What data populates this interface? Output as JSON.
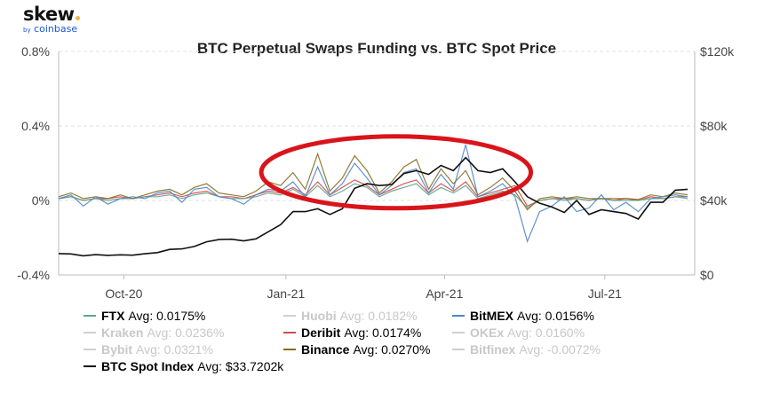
{
  "chart_data": {
    "type": "line",
    "title": "BTC Perpetual Swaps Funding vs. BTC Spot Price",
    "x_ticks": [
      "Oct-20",
      "Jan-21",
      "Apr-21",
      "Jul-21"
    ],
    "x_range": [
      "2020-08-25",
      "2021-08-21"
    ],
    "y_left": {
      "ticks": [
        "-0.4%",
        "0%",
        "0.4%",
        "0.8%"
      ],
      "range": [
        -0.4,
        0.8
      ],
      "unit": "%"
    },
    "y_right": {
      "ticks": [
        "$0",
        "$40k",
        "$80k",
        "$120k"
      ],
      "range": [
        0,
        120
      ],
      "unit": "$k"
    },
    "grid": "dashed horizontal",
    "legend_position": "bottom",
    "x_dates_weekly_start": "2020-08-25",
    "series": [
      {
        "name": "BTC Spot Index",
        "avg": "Avg: $33.7202k",
        "axis": "right",
        "color": "#111111",
        "visible": true,
        "values": [
          11.5,
          11.3,
          10.3,
          10.9,
          10.5,
          10.8,
          10.6,
          11.4,
          12.0,
          13.7,
          14.0,
          15.3,
          17.8,
          19.0,
          19.2,
          18.3,
          19.4,
          23.2,
          27.0,
          34.0,
          34.0,
          35.5,
          32.5,
          35.5,
          46.5,
          49.0,
          48.0,
          48.5,
          54.5,
          56.0,
          54.0,
          58.8,
          56.0,
          63.0,
          56.0,
          55.0,
          57.0,
          50.0,
          42.0,
          38.5,
          36.5,
          33.5,
          40.0,
          32.5,
          35.0,
          34.0,
          33.0,
          30.0,
          39.0,
          39.0,
          45.5,
          46.0
        ]
      },
      {
        "name": "Binance",
        "avg": "Avg: 0.0270%",
        "axis": "left",
        "color": "#8a6a1f",
        "visible": true,
        "values": [
          0.02,
          0.04,
          0.01,
          0.02,
          0.01,
          0.03,
          0.01,
          0.03,
          0.05,
          0.06,
          0.03,
          0.07,
          0.09,
          0.04,
          0.03,
          0.02,
          0.05,
          0.1,
          0.08,
          0.15,
          0.06,
          0.25,
          0.05,
          0.12,
          0.24,
          0.16,
          0.04,
          0.1,
          0.18,
          0.22,
          0.06,
          0.17,
          0.09,
          0.16,
          0.03,
          0.07,
          0.12,
          0.05,
          -0.05,
          0.01,
          0.02,
          0.01,
          0.02,
          0.01,
          0.01,
          0.01,
          0.01,
          0.005,
          0.03,
          0.02,
          0.04,
          0.03
        ]
      },
      {
        "name": "BitMEX",
        "avg": "Avg: 0.0156%",
        "axis": "left",
        "color": "#4f86c6",
        "visible": true,
        "values": [
          0.01,
          0.03,
          -0.03,
          0.02,
          -0.02,
          0.01,
          0.02,
          0.01,
          0.04,
          0.05,
          -0.01,
          0.06,
          0.07,
          0.02,
          0.01,
          -0.02,
          0.03,
          0.06,
          0.05,
          0.1,
          0.02,
          0.18,
          0.03,
          0.09,
          0.2,
          0.12,
          0.03,
          0.08,
          0.15,
          0.17,
          0.04,
          0.14,
          0.06,
          0.3,
          0.02,
          0.05,
          0.09,
          0.02,
          -0.22,
          -0.06,
          -0.03,
          0.02,
          -0.06,
          -0.04,
          0.03,
          -0.05,
          -0.01,
          -0.06,
          0.01,
          0.02,
          0.03,
          0.02
        ]
      },
      {
        "name": "Deribit",
        "avg": "Avg: 0.0174%",
        "axis": "left",
        "color": "#d04a4a",
        "visible": true,
        "values": [
          0.01,
          0.02,
          0.0,
          0.01,
          0.01,
          0.02,
          0.01,
          0.02,
          0.03,
          0.04,
          0.02,
          0.04,
          0.05,
          0.02,
          0.02,
          0.01,
          0.03,
          0.05,
          0.04,
          0.07,
          0.03,
          0.1,
          0.03,
          0.07,
          0.11,
          0.08,
          0.03,
          0.06,
          0.09,
          0.11,
          0.04,
          0.09,
          0.05,
          0.1,
          0.02,
          0.04,
          0.06,
          0.08,
          -0.03,
          0.0,
          0.01,
          0.01,
          0.01,
          0.0,
          0.01,
          0.0,
          0.01,
          0.0,
          0.02,
          0.01,
          0.02,
          0.02
        ]
      },
      {
        "name": "FTX",
        "avg": "Avg: 0.0175%",
        "axis": "left",
        "color": "#5fa58e",
        "visible": true,
        "values": [
          0.01,
          0.02,
          0.0,
          0.01,
          0.0,
          0.01,
          0.01,
          0.02,
          0.02,
          0.03,
          0.01,
          0.03,
          0.04,
          0.02,
          0.01,
          0.01,
          0.02,
          0.04,
          0.03,
          0.06,
          0.02,
          0.08,
          0.02,
          0.05,
          0.09,
          0.07,
          0.02,
          0.05,
          0.07,
          0.09,
          0.03,
          0.07,
          0.04,
          0.08,
          0.01,
          0.03,
          0.05,
          0.03,
          -0.04,
          0.0,
          0.01,
          0.0,
          0.01,
          0.0,
          0.01,
          0.0,
          0.0,
          0.0,
          0.01,
          0.01,
          0.02,
          0.01
        ]
      },
      {
        "name": "Huobi",
        "avg": "Avg: 0.0182%",
        "visible": false
      },
      {
        "name": "Kraken",
        "avg": "Avg: 0.0236%",
        "visible": false
      },
      {
        "name": "OKEx",
        "avg": "Avg: 0.0160%",
        "visible": false
      },
      {
        "name": "Bybit",
        "avg": "Avg: 0.0321%",
        "visible": false
      },
      {
        "name": "Bitfinex",
        "avg": "Avg: -0.0072%",
        "visible": false
      }
    ],
    "annotation": {
      "shape": "ellipse",
      "color": "#d9141b",
      "x_range": [
        "2020-12-18",
        "2021-05-20"
      ],
      "y_range_pct": [
        0.02,
        0.33
      ]
    }
  },
  "logo": {
    "brand": "skew",
    "sub_by": "by",
    "sub": "coinbase"
  }
}
